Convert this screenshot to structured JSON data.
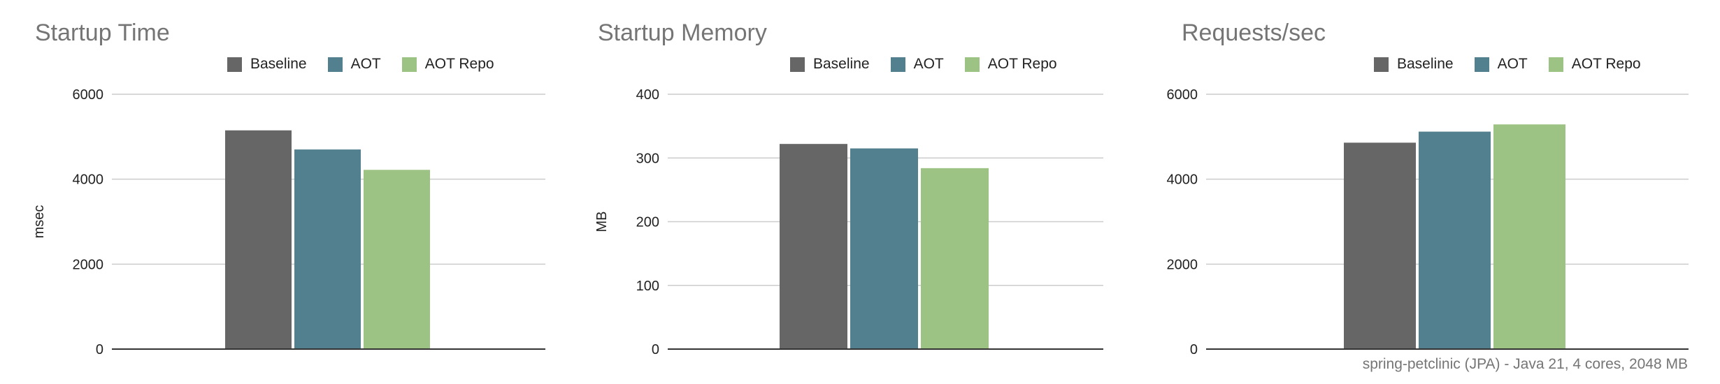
{
  "series": [
    {
      "name": "Baseline",
      "color": "#666666"
    },
    {
      "name": "AOT",
      "color": "#53808e"
    },
    {
      "name": "AOT Repo",
      "color": "#9dc384"
    }
  ],
  "chart_data": [
    {
      "type": "bar",
      "title": "Startup Time",
      "ylabel": "msec",
      "xlabel": "",
      "ylim": [
        0,
        6000
      ],
      "yticks": [
        "0",
        "2000",
        "4000",
        "6000"
      ],
      "ytick_values": [
        0,
        2000,
        4000,
        6000
      ],
      "categories": [
        ""
      ],
      "series": [
        {
          "name": "Baseline",
          "values": [
            5150
          ]
        },
        {
          "name": "AOT",
          "values": [
            4700
          ]
        },
        {
          "name": "AOT Repo",
          "values": [
            4220
          ]
        }
      ],
      "legend": "top",
      "grid": true
    },
    {
      "type": "bar",
      "title": "Startup Memory",
      "ylabel": "MB",
      "xlabel": "",
      "ylim": [
        0,
        400
      ],
      "yticks": [
        "0",
        "100",
        "200",
        "300",
        "400"
      ],
      "ytick_values": [
        0,
        100,
        200,
        300,
        400
      ],
      "categories": [
        ""
      ],
      "series": [
        {
          "name": "Baseline",
          "values": [
            322
          ]
        },
        {
          "name": "AOT",
          "values": [
            315
          ]
        },
        {
          "name": "AOT Repo",
          "values": [
            284
          ]
        }
      ],
      "legend": "top",
      "grid": true
    },
    {
      "type": "bar",
      "title": "Requests/sec",
      "ylabel": "",
      "xlabel": "",
      "ylim": [
        0,
        6000
      ],
      "yticks": [
        "0",
        "2000",
        "4000",
        "6000"
      ],
      "ytick_values": [
        0,
        2000,
        4000,
        6000
      ],
      "categories": [
        ""
      ],
      "series": [
        {
          "name": "Baseline",
          "values": [
            4860
          ]
        },
        {
          "name": "AOT",
          "values": [
            5120
          ]
        },
        {
          "name": "AOT Repo",
          "values": [
            5290
          ]
        }
      ],
      "legend": "top",
      "grid": true
    }
  ],
  "footnote": "spring-petclinic (JPA) - Java 21, 4 cores, 2048 MB"
}
